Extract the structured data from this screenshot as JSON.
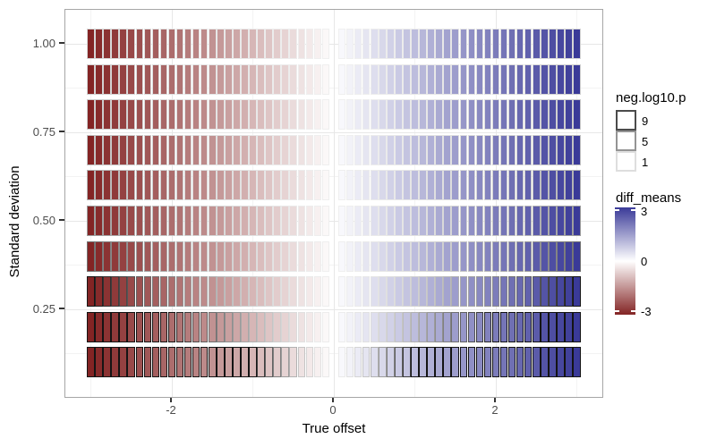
{
  "figure": {
    "background": "#FFFFFF"
  },
  "chart_data": {
    "type": "heatmap",
    "title": "",
    "xlabel": "True offset",
    "ylabel": "Standard deviation",
    "x_ticks": {
      "labels": [
        "-2",
        "0",
        "2"
      ],
      "values": [
        -2,
        0,
        2
      ]
    },
    "x_minor": [
      -3,
      -1,
      1,
      3
    ],
    "y_ticks": {
      "labels": [
        "1.00",
        "0.75",
        "0.50",
        "0.25"
      ],
      "values": [
        1.0,
        0.75,
        0.5,
        0.25
      ]
    },
    "y_minor": [
      0.875,
      0.625,
      0.375,
      0.125
    ],
    "xlim": [
      -3.32,
      3.32
    ],
    "ylim": [
      0.0,
      1.1
    ],
    "grid": {
      "major_color": "#e7e7e7",
      "minor_color": "#f3f3f3"
    },
    "offsets": [
      -3.0,
      -2.9,
      -2.8,
      -2.7,
      -2.6,
      -2.5,
      -2.4,
      -2.3,
      -2.2,
      -2.1,
      -2.0,
      -1.9,
      -1.8,
      -1.7,
      -1.6,
      -1.5,
      -1.4,
      -1.3,
      -1.2,
      -1.1,
      -1.0,
      -0.9,
      -0.8,
      -0.7,
      -0.6,
      -0.5,
      -0.4,
      -0.3,
      -0.2,
      -0.1,
      0.1,
      0.2,
      0.3,
      0.4,
      0.5,
      0.6,
      0.7,
      0.8,
      0.9,
      1.0,
      1.1,
      1.2,
      1.3,
      1.4,
      1.5,
      1.6,
      1.7,
      1.8,
      1.9,
      2.0,
      2.1,
      2.2,
      2.3,
      2.4,
      2.5,
      2.6,
      2.7,
      2.8,
      2.9,
      3.0
    ],
    "sds": [
      0.1,
      0.2,
      0.3,
      0.4,
      0.5,
      0.6,
      0.7,
      0.8,
      0.9,
      1.0
    ],
    "diff_means_note": "fill value of each tile equals its true offset (identical across rows)",
    "fill_scale": {
      "variable": "diff_means",
      "low": "#832424",
      "mid": "#FFFFFF",
      "high": "#3A3A98",
      "limits": [
        -3,
        3
      ],
      "breaks": [
        3,
        0,
        -3
      ],
      "legend": "colorbar, right side"
    },
    "border_scale": {
      "variable": "neg.log10.p",
      "breaks": [
        9,
        5,
        1
      ],
      "rule": "-log10 of two-sided z-test p-value with z = |offset|/(sd*sqrt(2)), capped at 12",
      "cap": 12,
      "low_color": "#F0F0F0",
      "high_color": "#141414"
    }
  },
  "legends": {
    "neg_log10_p": {
      "title": "neg.log10.p",
      "entries": [
        {
          "label": "9",
          "border": "#4b4b4b"
        },
        {
          "label": "5",
          "border": "#949494"
        },
        {
          "label": "1",
          "border": "#dedede"
        }
      ]
    },
    "diff_means": {
      "title": "diff_means",
      "tick_labels": [
        "3",
        "0",
        "-3"
      ]
    }
  }
}
